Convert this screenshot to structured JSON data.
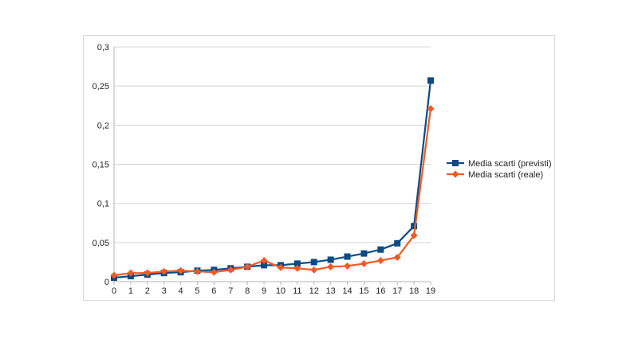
{
  "chart_data": {
    "type": "line",
    "x": [
      0,
      1,
      2,
      3,
      4,
      5,
      6,
      7,
      8,
      9,
      10,
      11,
      12,
      13,
      14,
      15,
      16,
      17,
      18,
      19
    ],
    "ylim": [
      0,
      0.3
    ],
    "yticks": [
      0,
      0.05,
      0.1,
      0.15,
      0.2,
      0.25,
      0.3
    ],
    "ytick_labels": [
      "0",
      "0,05",
      "0,1",
      "0,15",
      "0,2",
      "0,25",
      "0,3"
    ],
    "grid": "horizontal",
    "legend_position": "right",
    "series": [
      {
        "name": "Media scarti (previsti)",
        "color": "#0b4a84",
        "marker": "square",
        "values": [
          0.005,
          0.007,
          0.009,
          0.011,
          0.012,
          0.014,
          0.015,
          0.017,
          0.019,
          0.021,
          0.021,
          0.023,
          0.025,
          0.028,
          0.032,
          0.036,
          0.041,
          0.049,
          0.071,
          0.257
        ]
      },
      {
        "name": "Media scarti (reale)",
        "color": "#f05a24",
        "marker": "diamond",
        "values": [
          0.008,
          0.011,
          0.011,
          0.013,
          0.014,
          0.013,
          0.012,
          0.015,
          0.019,
          0.027,
          0.018,
          0.017,
          0.015,
          0.019,
          0.02,
          0.023,
          0.027,
          0.031,
          0.059,
          0.221
        ]
      }
    ]
  }
}
